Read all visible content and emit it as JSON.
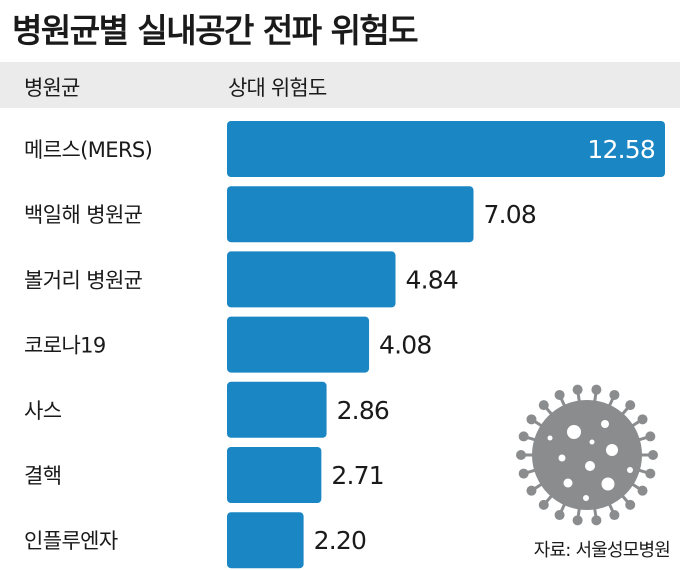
{
  "title": "병원균별 실내공간 전파 위험도",
  "header": {
    "category_label": "병원균",
    "value_label": "상대 위험도"
  },
  "source": "자료: 서울성모병원",
  "colors": {
    "bar": "#1a86c4",
    "header_band": "#ebebeb",
    "virus": "#8a8c8e"
  },
  "chart_data": {
    "type": "bar",
    "orientation": "horizontal",
    "title": "병원균별 실내공간 전파 위험도",
    "xlabel": "상대 위험도",
    "ylabel": "병원균",
    "categories": [
      "메르스(MERS)",
      "백일해 병원균",
      "볼거리 병원균",
      "코로나19",
      "사스",
      "결핵",
      "인플루엔자"
    ],
    "values": [
      12.58,
      7.08,
      4.84,
      4.08,
      2.86,
      2.71,
      2.2
    ],
    "value_labels": [
      "12.58",
      "7.08",
      "4.84",
      "4.08",
      "2.86",
      "2.71",
      "2.20"
    ],
    "xlim": [
      0,
      13
    ],
    "grid": false,
    "legend": "none"
  }
}
